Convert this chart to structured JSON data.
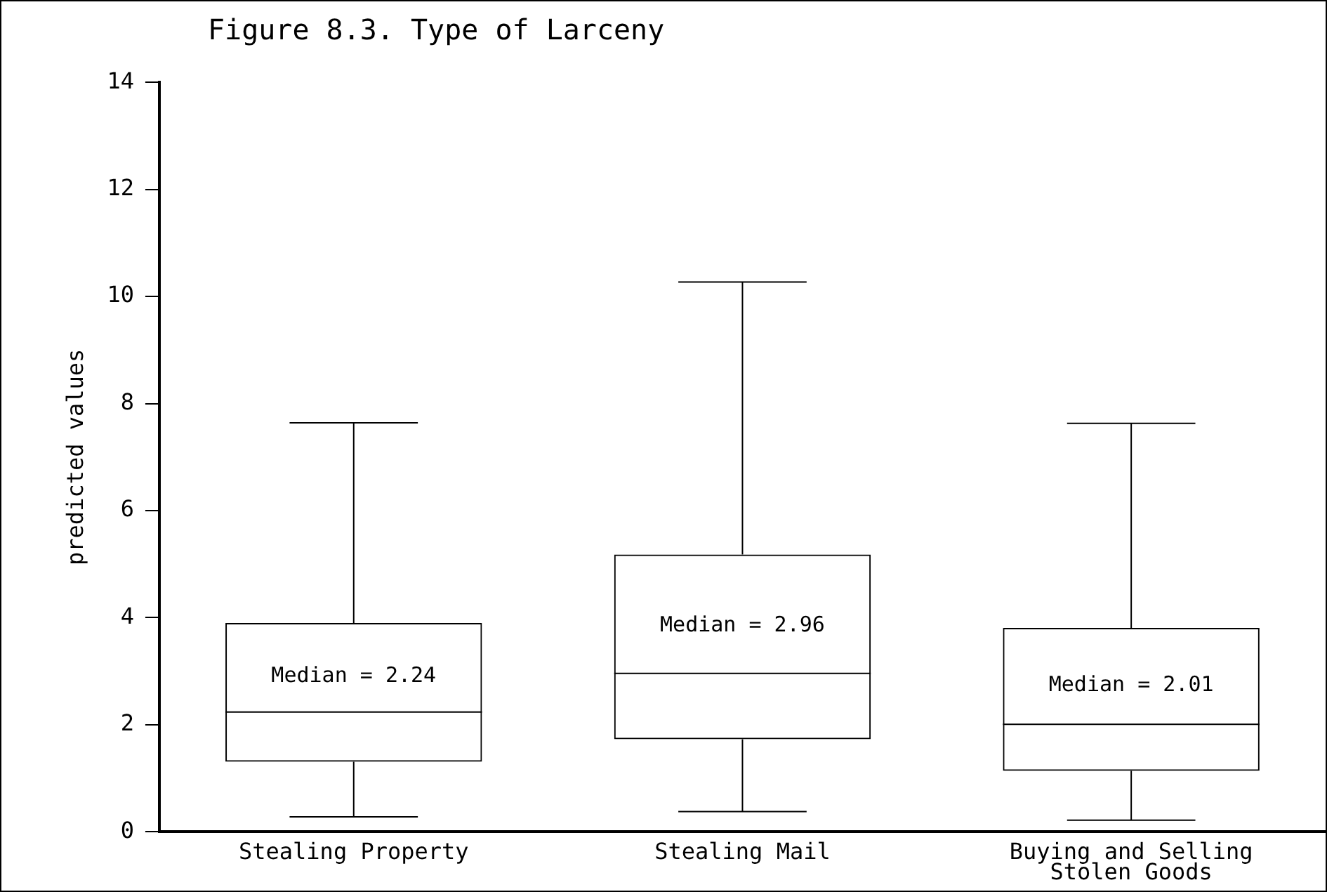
{
  "chart_data": {
    "type": "box",
    "title": "Figure 8.3. Type of Larceny",
    "ylabel": "predicted values",
    "categories": [
      "Stealing Property",
      "Stealing Mail",
      "Buying and Selling\nStolen Goods"
    ],
    "boxes": [
      {
        "low": 0.28,
        "q1": 1.31,
        "median": 2.24,
        "q3": 3.9,
        "high": 7.64
      },
      {
        "low": 0.38,
        "q1": 1.73,
        "median": 2.96,
        "q3": 5.18,
        "high": 10.27
      },
      {
        "low": 0.22,
        "q1": 1.14,
        "median": 2.01,
        "q3": 3.81,
        "high": 7.63
      }
    ],
    "color": "#000000",
    "ylim": [
      0,
      14
    ],
    "yticks": [
      0,
      2,
      4,
      6,
      8,
      10,
      12,
      14
    ],
    "grid": false,
    "legend": false,
    "annotations": [
      "Median = 2.24",
      "Median = 2.96",
      "Median = 2.01"
    ]
  }
}
